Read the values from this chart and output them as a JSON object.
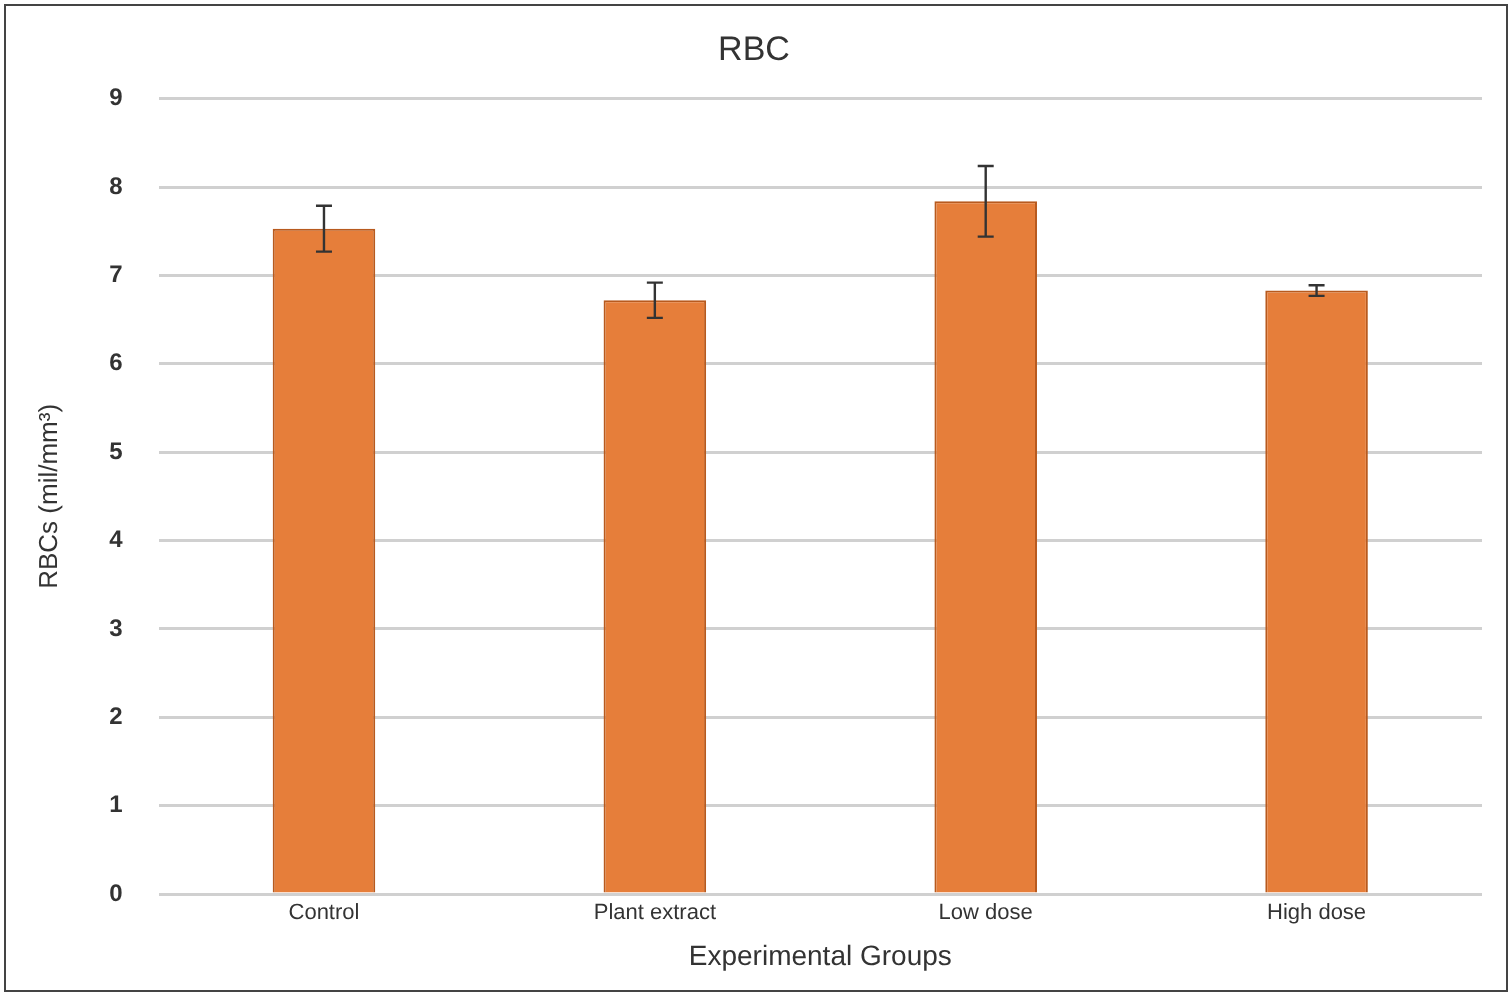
{
  "chart_data": {
    "type": "bar",
    "title": "RBC",
    "xlabel": "Experimental Groups",
    "ylabel": "RBCs (mil/mm³)",
    "categories": [
      "Control",
      "Plant extract",
      "Low dose",
      "High dose"
    ],
    "values": [
      7.53,
      6.72,
      7.84,
      6.83
    ],
    "errors": [
      0.26,
      0.2,
      0.4,
      0.06
    ],
    "color": "#e67e3a",
    "ylim": [
      0,
      9
    ],
    "yticks": [
      0,
      1,
      2,
      3,
      4,
      5,
      6,
      7,
      8,
      9
    ],
    "grid": "y",
    "legend": false
  }
}
